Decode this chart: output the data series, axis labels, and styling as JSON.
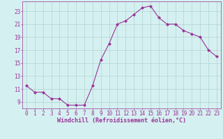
{
  "x": [
    0,
    1,
    2,
    3,
    4,
    5,
    6,
    7,
    8,
    9,
    10,
    11,
    12,
    13,
    14,
    15,
    16,
    17,
    18,
    19,
    20,
    21,
    22,
    23
  ],
  "y": [
    11.5,
    10.5,
    10.5,
    9.5,
    9.5,
    8.5,
    8.5,
    8.5,
    11.5,
    15.5,
    18.0,
    21.0,
    21.5,
    22.5,
    23.5,
    23.8,
    22.0,
    21.0,
    21.0,
    20.0,
    19.5,
    19.0,
    17.0,
    16.0
  ],
  "line_color": "#993399",
  "marker": "D",
  "marker_size": 2.0,
  "bg_color": "#d5f0f0",
  "grid_color": "#aacccc",
  "xlabel": "Windchill (Refroidissement éolien,°C)",
  "xlim": [
    -0.5,
    23.5
  ],
  "ylim": [
    8.0,
    24.5
  ],
  "yticks": [
    9,
    11,
    13,
    15,
    17,
    19,
    21,
    23
  ],
  "xticks": [
    0,
    1,
    2,
    3,
    4,
    5,
    6,
    7,
    8,
    9,
    10,
    11,
    12,
    13,
    14,
    15,
    16,
    17,
    18,
    19,
    20,
    21,
    22,
    23
  ],
  "tick_color": "#993399",
  "label_color": "#993399",
  "axis_fontsize": 5.5,
  "xlabel_fontsize": 6.0,
  "linewidth": 0.8
}
